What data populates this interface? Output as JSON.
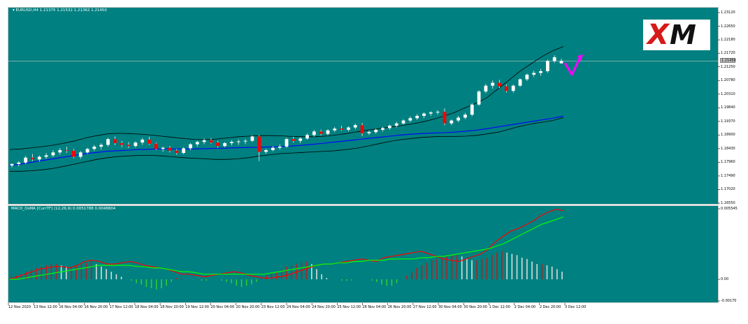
{
  "main_title": "▾ EURUSD,H4  1.21375  1.21532  1.21362  1.21450",
  "osc_title": "MACD_OsMA [CurrTF] (12,26,9) 0.0051788 0.0048804",
  "logo_text": "XM",
  "current_price_label": "1.21450",
  "colors": {
    "background": "#008080",
    "bull_candle": "#ffffff",
    "bear_candle": "#ff0000",
    "bands": "#000000",
    "moving_average": "#0000ff",
    "macd_line": "#ff0000",
    "signal_line": "#00ff00",
    "hist_up": "#b22222",
    "hist_light": "#dcdcdc",
    "hist_down": "#32cd32",
    "arrow": "#ff00ff"
  },
  "chart_data": [
    {
      "type": "candlestick",
      "title": "EURUSD,H4",
      "ohlc_header": {
        "open": 1.21375,
        "high": 1.21532,
        "low": 1.21362,
        "close": 1.2145
      },
      "ylim": [
        1.1655,
        1.2312
      ],
      "yticks": [
        1.2312,
        1.2265,
        1.2218,
        1.2172,
        1.2125,
        1.2078,
        1.2031,
        1.1984,
        1.1937,
        1.189,
        1.1843,
        1.1796,
        1.1749,
        1.1702,
        1.1655
      ],
      "ytick_labels": [
        "1.23120",
        "1.22650",
        "1.22180",
        "1.21720",
        "1.21250",
        "1.20780",
        "1.20310",
        "1.19840",
        "1.19370",
        "1.18900",
        "1.18430",
        "1.17960",
        "1.17490",
        "1.17020",
        "1.16550"
      ],
      "current_price": 1.2145,
      "xtick_labels": [
        "12 Nov 2020",
        "13 Nov 12:00",
        "16 Nov 04:00",
        "16 Nov 20:00",
        "17 Nov 12:00",
        "18 Nov 04:00",
        "18 Nov 20:00",
        "19 Nov 12:00",
        "20 Nov 04:00",
        "20 Nov 20:00",
        "23 Nov 12:00",
        "24 Nov 04:00",
        "24 Nov 20:00",
        "25 Nov 12:00",
        "26 Nov 04:00",
        "26 Nov 20:00",
        "27 Nov 12:00",
        "30 Nov 04:00",
        "30 Nov 20:00",
        "1 Dec 12:00",
        "2 Dec 04:00",
        "2 Dec 20:00",
        "3 Dec 12:00"
      ],
      "candles": [
        [
          1.1785,
          1.1792,
          1.1778,
          1.179
        ],
        [
          1.179,
          1.18,
          1.1782,
          1.1795
        ],
        [
          1.1795,
          1.1818,
          1.179,
          1.1812
        ],
        [
          1.1812,
          1.1825,
          1.18,
          1.1806
        ],
        [
          1.1806,
          1.182,
          1.1798,
          1.1815
        ],
        [
          1.1815,
          1.1828,
          1.1808,
          1.182
        ],
        [
          1.182,
          1.1838,
          1.1814,
          1.183
        ],
        [
          1.183,
          1.1845,
          1.1822,
          1.1838
        ],
        [
          1.1838,
          1.185,
          1.1828,
          1.1836
        ],
        [
          1.1836,
          1.1842,
          1.181,
          1.1815
        ],
        [
          1.1815,
          1.1835,
          1.1808,
          1.183
        ],
        [
          1.183,
          1.1846,
          1.1825,
          1.1842
        ],
        [
          1.1842,
          1.1856,
          1.1835,
          1.185
        ],
        [
          1.185,
          1.1862,
          1.184,
          1.1856
        ],
        [
          1.1856,
          1.188,
          1.185,
          1.1876
        ],
        [
          1.1876,
          1.1885,
          1.1855,
          1.1862
        ],
        [
          1.1862,
          1.187,
          1.1848,
          1.1856
        ],
        [
          1.1856,
          1.1866,
          1.1845,
          1.1852
        ],
        [
          1.1852,
          1.1868,
          1.1847,
          1.1864
        ],
        [
          1.1864,
          1.188,
          1.1856,
          1.1874
        ],
        [
          1.1874,
          1.1884,
          1.1856,
          1.186
        ],
        [
          1.186,
          1.1864,
          1.1838,
          1.1842
        ],
        [
          1.1842,
          1.185,
          1.1832,
          1.1846
        ],
        [
          1.1846,
          1.1852,
          1.183,
          1.1836
        ],
        [
          1.1836,
          1.1842,
          1.1822,
          1.1828
        ],
        [
          1.1828,
          1.1848,
          1.1824,
          1.1844
        ],
        [
          1.1844,
          1.1862,
          1.1838,
          1.1858
        ],
        [
          1.1858,
          1.187,
          1.185,
          1.1866
        ],
        [
          1.1866,
          1.1878,
          1.1858,
          1.1872
        ],
        [
          1.1872,
          1.188,
          1.186,
          1.1864
        ],
        [
          1.1864,
          1.187,
          1.1846,
          1.1852
        ],
        [
          1.1852,
          1.1866,
          1.1848,
          1.1862
        ],
        [
          1.1862,
          1.1872,
          1.1854,
          1.1866
        ],
        [
          1.1866,
          1.1875,
          1.1856,
          1.1868
        ],
        [
          1.1868,
          1.1876,
          1.1858,
          1.187
        ],
        [
          1.187,
          1.1888,
          1.1866,
          1.1885
        ],
        [
          1.1885,
          1.189,
          1.18,
          1.1832
        ],
        [
          1.1832,
          1.1842,
          1.1826,
          1.1838
        ],
        [
          1.1838,
          1.1852,
          1.1834,
          1.1846
        ],
        [
          1.1846,
          1.1858,
          1.184,
          1.185
        ],
        [
          1.185,
          1.188,
          1.1846,
          1.1876
        ],
        [
          1.1876,
          1.1884,
          1.1864,
          1.187
        ],
        [
          1.187,
          1.1882,
          1.1862,
          1.1878
        ],
        [
          1.1878,
          1.1896,
          1.1874,
          1.189
        ],
        [
          1.189,
          1.1908,
          1.1884,
          1.1902
        ],
        [
          1.1902,
          1.1908,
          1.1888,
          1.1894
        ],
        [
          1.1894,
          1.191,
          1.1888,
          1.1906
        ],
        [
          1.1906,
          1.1918,
          1.19,
          1.1912
        ],
        [
          1.1912,
          1.1922,
          1.1904,
          1.1908
        ],
        [
          1.1908,
          1.192,
          1.1902,
          1.1916
        ],
        [
          1.1916,
          1.193,
          1.191,
          1.1924
        ],
        [
          1.1924,
          1.1932,
          1.1886,
          1.1896
        ],
        [
          1.1896,
          1.1906,
          1.189,
          1.19
        ],
        [
          1.19,
          1.1912,
          1.1894,
          1.1908
        ],
        [
          1.1908,
          1.1918,
          1.1902,
          1.1914
        ],
        [
          1.1914,
          1.1926,
          1.1908,
          1.1922
        ],
        [
          1.1922,
          1.1936,
          1.1916,
          1.193
        ],
        [
          1.193,
          1.1944,
          1.1926,
          1.194
        ],
        [
          1.194,
          1.1954,
          1.1934,
          1.1948
        ],
        [
          1.1948,
          1.1962,
          1.1942,
          1.1956
        ],
        [
          1.1956,
          1.1968,
          1.1948,
          1.1964
        ],
        [
          1.1964,
          1.1972,
          1.1956,
          1.1968
        ],
        [
          1.1968,
          1.1976,
          1.196,
          1.197
        ],
        [
          1.197,
          1.1982,
          1.1924,
          1.193
        ],
        [
          1.193,
          1.1944,
          1.1924,
          1.194
        ],
        [
          1.194,
          1.1956,
          1.1934,
          1.195
        ],
        [
          1.195,
          1.1966,
          1.1944,
          1.196
        ],
        [
          1.196,
          1.2,
          1.1955,
          1.1995
        ],
        [
          1.1995,
          1.2045,
          1.199,
          1.204
        ],
        [
          1.204,
          1.2066,
          1.2034,
          1.206
        ],
        [
          1.206,
          1.2078,
          1.205,
          1.207
        ],
        [
          1.207,
          1.208,
          1.2052,
          1.2058
        ],
        [
          1.2058,
          1.2064,
          1.2036,
          1.2042
        ],
        [
          1.2042,
          1.2064,
          1.2036,
          1.206
        ],
        [
          1.206,
          1.2085,
          1.2056,
          1.2082
        ],
        [
          1.2082,
          1.2102,
          1.2076,
          1.2098
        ],
        [
          1.2098,
          1.2112,
          1.209,
          1.2104
        ],
        [
          1.2104,
          1.2118,
          1.2094,
          1.211
        ],
        [
          1.211,
          1.215,
          1.2104,
          1.2145
        ],
        [
          1.2145,
          1.2165,
          1.2138,
          1.2158
        ],
        [
          1.2137,
          1.2153,
          1.2136,
          1.2145
        ]
      ],
      "upper_band": [
        1.184,
        1.1842,
        1.1846,
        1.185,
        1.1855,
        1.1862,
        1.187,
        1.188,
        1.1888,
        1.1894,
        1.1896,
        1.1895,
        1.1893,
        1.189,
        1.1886,
        1.1882,
        1.1878,
        1.1875,
        1.1874,
        1.1876,
        1.188,
        1.1884,
        1.1886,
        1.1888,
        1.1888,
        1.1887,
        1.1885,
        1.1884,
        1.1884,
        1.1886,
        1.189,
        1.1895,
        1.1901,
        1.1907,
        1.1912,
        1.1917,
        1.1922,
        1.1928,
        1.1935,
        1.1944,
        1.1955,
        1.1968,
        1.1985,
        1.2,
        1.202,
        1.205,
        1.208,
        1.211,
        1.2135,
        1.216,
        1.218,
        1.2195
      ],
      "lower_band": [
        1.1765,
        1.1765,
        1.1767,
        1.177,
        1.1775,
        1.1782,
        1.179,
        1.1798,
        1.1806,
        1.1812,
        1.1816,
        1.1818,
        1.182,
        1.182,
        1.1818,
        1.1815,
        1.1812,
        1.181,
        1.1808,
        1.1806,
        1.1806,
        1.1808,
        1.1812,
        1.1818,
        1.1822,
        1.1826,
        1.1828,
        1.183,
        1.1832,
        1.1834,
        1.1836,
        1.184,
        1.1845,
        1.1852,
        1.186,
        1.1868,
        1.1874,
        1.1878,
        1.1882,
        1.1884,
        1.1885,
        1.1885,
        1.1886,
        1.1889,
        1.1894,
        1.19,
        1.191,
        1.192,
        1.1928,
        1.1934,
        1.194,
        1.195
      ],
      "moving_average": [
        1.1785,
        1.179,
        1.1796,
        1.1802,
        1.1808,
        1.1814,
        1.182,
        1.1826,
        1.183,
        1.1834,
        1.1836,
        1.1838,
        1.184,
        1.1841,
        1.1842,
        1.1842,
        1.1842,
        1.1842,
        1.1843,
        1.1844,
        1.1845,
        1.1846,
        1.1847,
        1.1848,
        1.1849,
        1.185,
        1.1852,
        1.1855,
        1.1858,
        1.1862,
        1.1866,
        1.187,
        1.1874,
        1.1878,
        1.1882,
        1.1886,
        1.189,
        1.1893,
        1.1895,
        1.1897,
        1.1898,
        1.19,
        1.1903,
        1.1907,
        1.1912,
        1.1918,
        1.1924,
        1.193,
        1.1936,
        1.1942,
        1.1948,
        1.1955
      ]
    },
    {
      "type": "bar",
      "title": "MACD_OsMA [CurrTF] (12,26,9)",
      "values_header": [
        0.0051788,
        0.0048804
      ],
      "ylim": [
        -0.0017,
        0.00554
      ],
      "yticks": [
        0.00554,
        0.0,
        -0.0017
      ],
      "ytick_labels": [
        "0.005545",
        "0.00",
        "-0.00170"
      ],
      "histogram": [
        0.0002,
        0.0003,
        0.0004,
        0.0006,
        0.0007,
        0.0009,
        0.001,
        0.0011,
        0.0012,
        0.0012,
        0.0011,
        0.001,
        0.001,
        0.0011,
        0.0012,
        0.0013,
        0.0014,
        0.0012,
        0.001,
        0.0008,
        0.0006,
        0.0004,
        0.0002,
        0.0,
        -0.0001,
        -0.0003,
        -0.0004,
        -0.0006,
        -0.0007,
        -0.0008,
        -0.0007,
        -0.0005,
        -0.0002,
        0.0001,
        0.0001,
        0.0,
        0.0,
        0.0,
        -0.0001,
        -0.0001,
        0.0,
        0.0,
        -0.0001,
        -0.0002,
        -0.0003,
        -0.0005,
        -0.0006,
        -0.0005,
        -0.0004,
        -0.0002,
        0.0001,
        0.0003,
        0.0005,
        0.0006,
        0.0008,
        0.001,
        0.0011,
        0.0012,
        0.0013,
        0.0014,
        0.0012,
        0.0008,
        0.0004,
        0.0001,
        0.0,
        0.0,
        -0.0001,
        -0.0001,
        -0.0001,
        0.0,
        0.0,
        0.0,
        -0.0001,
        -0.0002,
        -0.0004,
        -0.0005,
        -0.0005,
        -0.0003,
        0.0,
        0.0003,
        0.0006,
        0.0009,
        0.0011,
        0.0013,
        0.0015,
        0.0016,
        0.0017,
        0.0018,
        0.0019,
        0.0019,
        0.0018,
        0.0016,
        0.0015,
        0.0015,
        0.0016,
        0.0017,
        0.0019,
        0.0021,
        0.0022,
        0.0021,
        0.002,
        0.0019,
        0.0017,
        0.0016,
        0.0014,
        0.0012,
        0.0012,
        0.0011,
        0.001,
        0.0008,
        0.0006
      ],
      "macd_line": [
        0.0,
        0.0002,
        0.0004,
        0.0006,
        0.0008,
        0.0009,
        0.001,
        0.001,
        0.0009,
        0.0011,
        0.0014,
        0.0015,
        0.0014,
        0.0012,
        0.0012,
        0.0013,
        0.0014,
        0.0013,
        0.0011,
        0.001,
        0.0009,
        0.0008,
        0.0006,
        0.0004,
        0.0004,
        0.0003,
        0.0002,
        0.0003,
        0.0004,
        0.0005,
        0.0006,
        0.0005,
        0.0003,
        0.0002,
        0.0001,
        0.0001,
        0.0002,
        0.0003,
        0.0005,
        0.0007,
        0.0009,
        0.0011,
        0.0012,
        0.0012,
        0.0013,
        0.0014,
        0.0015,
        0.0016,
        0.0015,
        0.0014,
        0.0017,
        0.0018,
        0.0019,
        0.002,
        0.0021,
        0.0022,
        0.002,
        0.0018,
        0.0016,
        0.0015,
        0.0014,
        0.0016,
        0.0018,
        0.002,
        0.0024,
        0.003,
        0.0034,
        0.0038,
        0.004,
        0.0043,
        0.0046,
        0.005,
        0.0053,
        0.0055,
        0.0054
      ],
      "signal_line": [
        0.0,
        0.0,
        0.0001,
        0.0002,
        0.0003,
        0.0004,
        0.0005,
        0.0006,
        0.0007,
        0.0008,
        0.0009,
        0.001,
        0.0011,
        0.0011,
        0.0011,
        0.0011,
        0.0011,
        0.001,
        0.001,
        0.0009,
        0.0009,
        0.0008,
        0.0007,
        0.0006,
        0.0006,
        0.0005,
        0.0004,
        0.0004,
        0.0004,
        0.0004,
        0.0004,
        0.0004,
        0.0004,
        0.0004,
        0.0004,
        0.0005,
        0.0006,
        0.0007,
        0.0008,
        0.0009,
        0.001,
        0.0011,
        0.0012,
        0.0012,
        0.0013,
        0.0013,
        0.0014,
        0.0014,
        0.0015,
        0.0015,
        0.0015,
        0.0016,
        0.0016,
        0.0016,
        0.0016,
        0.0017,
        0.0017,
        0.0018,
        0.0018,
        0.0019,
        0.002,
        0.0021,
        0.0022,
        0.0023,
        0.0024,
        0.0026,
        0.0028,
        0.0031,
        0.0034,
        0.0037,
        0.004,
        0.0043,
        0.0045,
        0.0047,
        0.0049
      ]
    }
  ]
}
